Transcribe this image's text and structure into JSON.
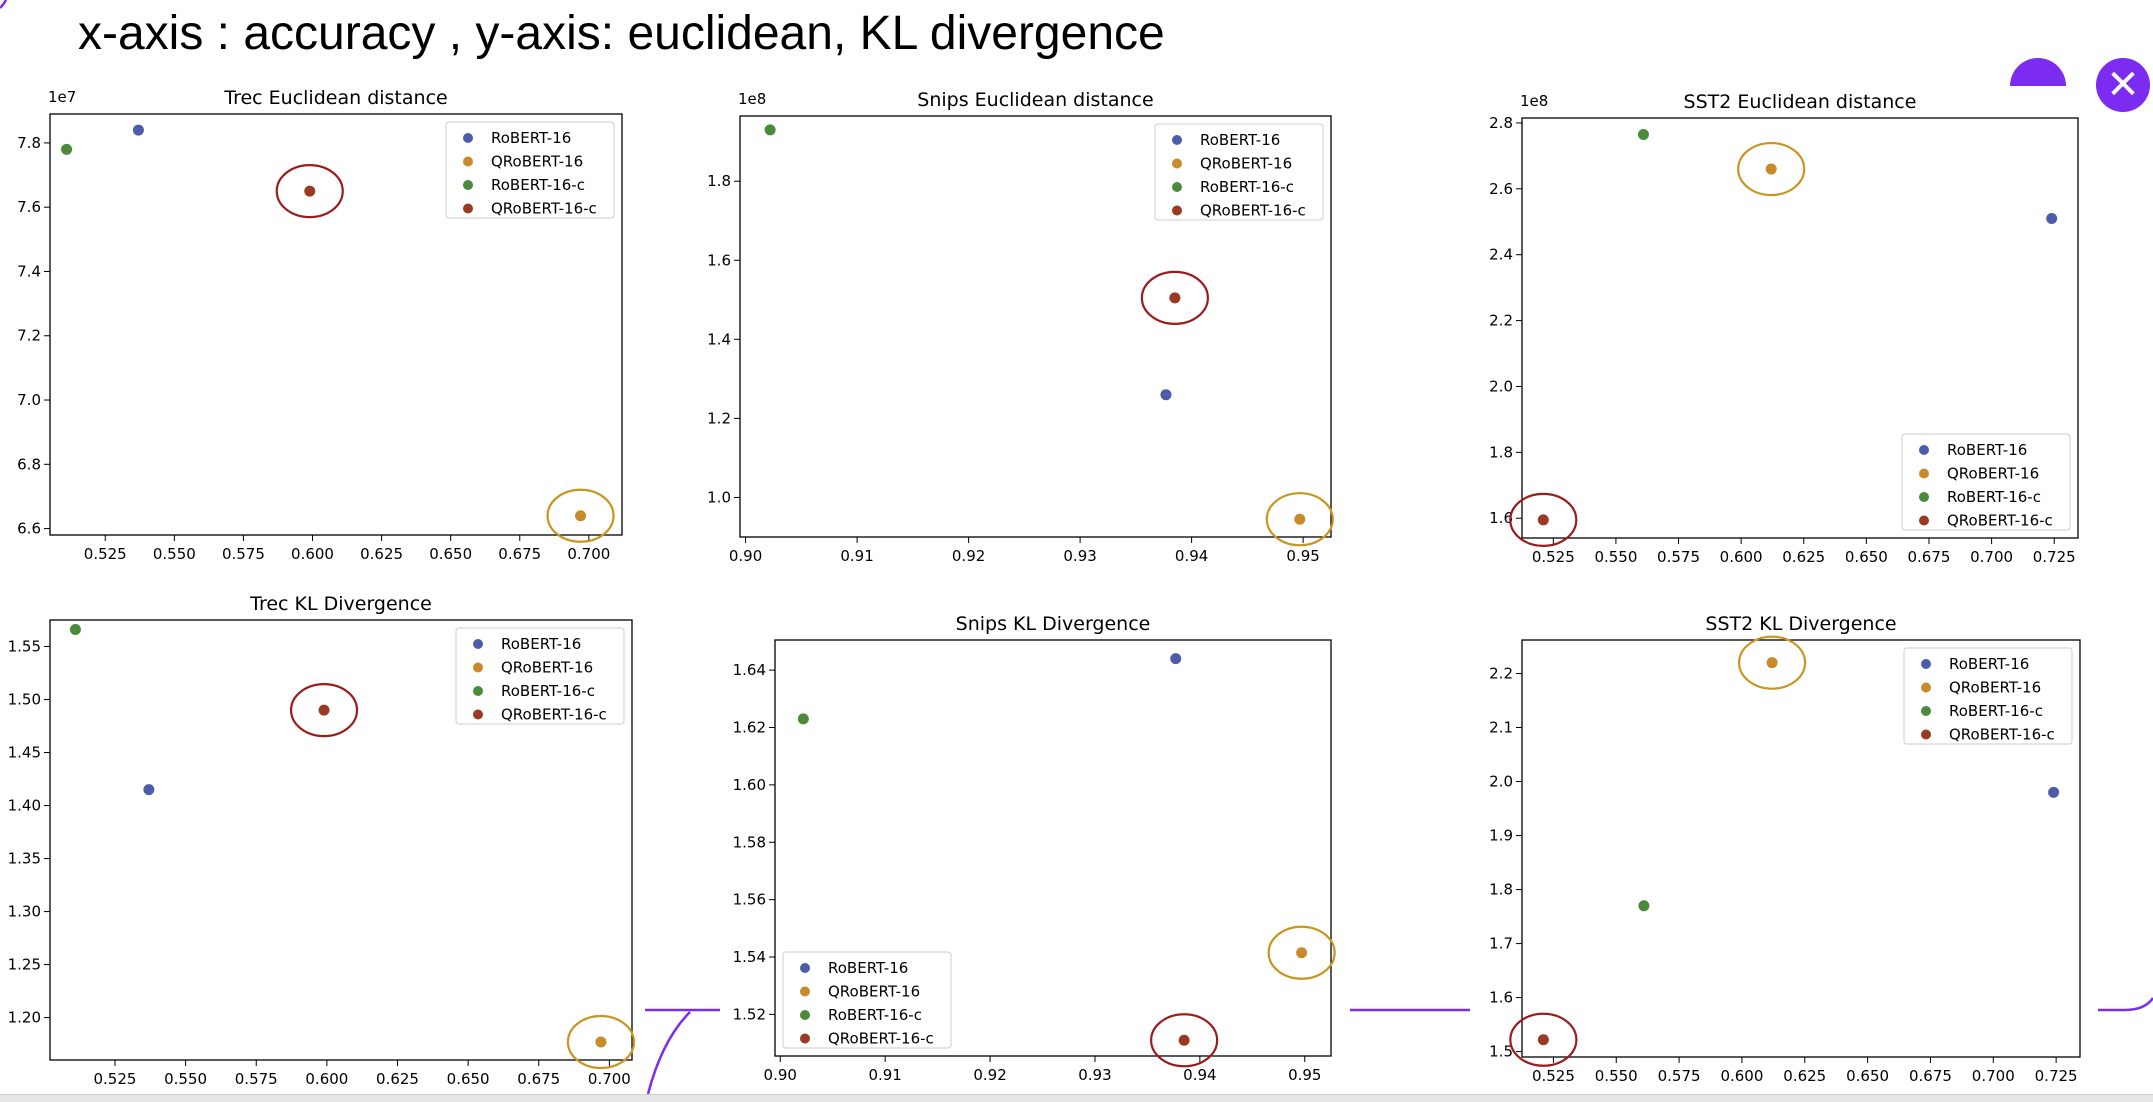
{
  "header": {
    "title": "x-axis : accuracy , y-axis: euclidean, KL divergence"
  },
  "controls": {
    "close_icon": "close-icon",
    "close_glyph": "✕",
    "accent": "#7b2cf0"
  },
  "colors": {
    "RoBERT-16": "#4c5ca8",
    "QRoBERT-16": "#c88a2a",
    "RoBERT-16-c": "#4a8a3a",
    "QRoBERT-16-c": "#9a3a22",
    "highlight_orange": "#c8951e",
    "highlight_red": "#9b1c1c"
  },
  "chart_data": [
    {
      "type": "scatter",
      "title": "Trec Euclidean distance",
      "offset_label": "1e7",
      "xlim": [
        0.505,
        0.712
      ],
      "ylim": [
        6.58,
        7.89
      ],
      "xticks": [
        0.525,
        0.55,
        0.575,
        0.6,
        0.625,
        0.65,
        0.675,
        0.7
      ],
      "xtick_labels": [
        "0.525",
        "0.550",
        "0.575",
        "0.600",
        "0.625",
        "0.650",
        "0.675",
        "0.700"
      ],
      "yticks": [
        6.6,
        6.8,
        7.0,
        7.2,
        7.4,
        7.6,
        7.8
      ],
      "ytick_labels": [
        "6.6",
        "6.8",
        "7.0",
        "7.2",
        "7.4",
        "7.6",
        "7.8"
      ],
      "legend_position": "top-right",
      "series": [
        {
          "name": "RoBERT-16",
          "x": 0.537,
          "y": 7.84
        },
        {
          "name": "QRoBERT-16",
          "x": 0.697,
          "y": 6.64
        },
        {
          "name": "RoBERT-16-c",
          "x": 0.511,
          "y": 7.78
        },
        {
          "name": "QRoBERT-16-c",
          "x": 0.599,
          "y": 7.65
        }
      ],
      "highlights": [
        {
          "series": "QRoBERT-16",
          "color": "highlight_orange"
        },
        {
          "series": "QRoBERT-16-c",
          "color": "highlight_red"
        }
      ]
    },
    {
      "type": "scatter",
      "title": "Snips Euclidean distance",
      "offset_label": "1e8",
      "xlim": [
        0.8995,
        0.9525
      ],
      "ylim": [
        0.9,
        1.965
      ],
      "xticks": [
        0.9,
        0.91,
        0.92,
        0.93,
        0.94,
        0.95
      ],
      "xtick_labels": [
        "0.90",
        "0.91",
        "0.92",
        "0.93",
        "0.94",
        "0.95"
      ],
      "yticks": [
        1.0,
        1.2,
        1.4,
        1.6,
        1.8
      ],
      "ytick_labels": [
        "1.0",
        "1.2",
        "1.4",
        "1.6",
        "1.8"
      ],
      "legend_position": "top-right",
      "series": [
        {
          "name": "RoBERT-16",
          "x": 0.9377,
          "y": 1.26
        },
        {
          "name": "QRoBERT-16",
          "x": 0.9497,
          "y": 0.945
        },
        {
          "name": "RoBERT-16-c",
          "x": 0.9022,
          "y": 1.93
        },
        {
          "name": "QRoBERT-16-c",
          "x": 0.9385,
          "y": 1.505
        }
      ],
      "highlights": [
        {
          "series": "QRoBERT-16",
          "color": "highlight_orange"
        },
        {
          "series": "QRoBERT-16-c",
          "color": "highlight_red"
        }
      ]
    },
    {
      "type": "scatter",
      "title": "SST2 Euclidean distance",
      "offset_label": "1e8",
      "xlim": [
        0.5125,
        0.7345
      ],
      "ylim": [
        1.54,
        2.815
      ],
      "xticks": [
        0.525,
        0.55,
        0.575,
        0.6,
        0.625,
        0.65,
        0.675,
        0.7,
        0.725
      ],
      "xtick_labels": [
        "0.525",
        "0.550",
        "0.575",
        "0.600",
        "0.625",
        "0.650",
        "0.675",
        "0.700",
        "0.725"
      ],
      "yticks": [
        1.6,
        1.8,
        2.0,
        2.2,
        2.4,
        2.6,
        2.8
      ],
      "ytick_labels": [
        "1.6",
        "1.8",
        "2.0",
        "2.2",
        "2.4",
        "2.6",
        "2.8"
      ],
      "legend_position": "bottom-right",
      "series": [
        {
          "name": "RoBERT-16",
          "x": 0.724,
          "y": 2.51
        },
        {
          "name": "QRoBERT-16",
          "x": 0.612,
          "y": 2.66
        },
        {
          "name": "RoBERT-16-c",
          "x": 0.561,
          "y": 2.765
        },
        {
          "name": "QRoBERT-16-c",
          "x": 0.521,
          "y": 1.595
        }
      ],
      "highlights": [
        {
          "series": "QRoBERT-16",
          "color": "highlight_orange"
        },
        {
          "series": "QRoBERT-16-c",
          "color": "highlight_red"
        }
      ]
    },
    {
      "type": "scatter",
      "title": "Trec KL Divergence",
      "offset_label": "",
      "xlim": [
        0.502,
        0.708
      ],
      "ylim": [
        1.16,
        1.575
      ],
      "xticks": [
        0.525,
        0.55,
        0.575,
        0.6,
        0.625,
        0.65,
        0.675,
        0.7
      ],
      "xtick_labels": [
        "0.525",
        "0.550",
        "0.575",
        "0.600",
        "0.625",
        "0.650",
        "0.675",
        "0.700"
      ],
      "yticks": [
        1.2,
        1.25,
        1.3,
        1.35,
        1.4,
        1.45,
        1.5,
        1.55
      ],
      "ytick_labels": [
        "1.20",
        "1.25",
        "1.30",
        "1.35",
        "1.40",
        "1.45",
        "1.50",
        "1.55"
      ],
      "legend_position": "top-right",
      "series": [
        {
          "name": "RoBERT-16",
          "x": 0.537,
          "y": 1.415
        },
        {
          "name": "QRoBERT-16",
          "x": 0.697,
          "y": 1.177
        },
        {
          "name": "RoBERT-16-c",
          "x": 0.511,
          "y": 1.566
        },
        {
          "name": "QRoBERT-16-c",
          "x": 0.599,
          "y": 1.49
        }
      ],
      "highlights": [
        {
          "series": "QRoBERT-16",
          "color": "highlight_orange"
        },
        {
          "series": "QRoBERT-16-c",
          "color": "highlight_red"
        }
      ]
    },
    {
      "type": "scatter",
      "title": "Snips KL Divergence",
      "offset_label": "",
      "xlim": [
        0.8995,
        0.9525
      ],
      "ylim": [
        1.5055,
        1.6505
      ],
      "xticks": [
        0.9,
        0.91,
        0.92,
        0.93,
        0.94,
        0.95
      ],
      "xtick_labels": [
        "0.90",
        "0.91",
        "0.92",
        "0.93",
        "0.94",
        "0.95"
      ],
      "yticks": [
        1.52,
        1.54,
        1.56,
        1.58,
        1.6,
        1.62,
        1.64
      ],
      "ytick_labels": [
        "1.52",
        "1.54",
        "1.56",
        "1.58",
        "1.60",
        "1.62",
        "1.64"
      ],
      "legend_position": "bottom-left",
      "series": [
        {
          "name": "RoBERT-16",
          "x": 0.9377,
          "y": 1.644
        },
        {
          "name": "QRoBERT-16",
          "x": 0.9497,
          "y": 1.5415
        },
        {
          "name": "RoBERT-16-c",
          "x": 0.9022,
          "y": 1.623
        },
        {
          "name": "QRoBERT-16-c",
          "x": 0.9385,
          "y": 1.511
        }
      ],
      "highlights": [
        {
          "series": "QRoBERT-16",
          "color": "highlight_orange"
        },
        {
          "series": "QRoBERT-16-c",
          "color": "highlight_red"
        }
      ]
    },
    {
      "type": "scatter",
      "title": "SST2 KL Divergence",
      "offset_label": "",
      "xlim": [
        0.5125,
        0.7345
      ],
      "ylim": [
        1.49,
        2.262
      ],
      "xticks": [
        0.525,
        0.55,
        0.575,
        0.6,
        0.625,
        0.65,
        0.675,
        0.7,
        0.725
      ],
      "xtick_labels": [
        "0.525",
        "0.550",
        "0.575",
        "0.600",
        "0.625",
        "0.650",
        "0.675",
        "0.700",
        "0.725"
      ],
      "yticks": [
        1.5,
        1.6,
        1.7,
        1.8,
        1.9,
        2.0,
        2.1,
        2.2
      ],
      "ytick_labels": [
        "1.5",
        "1.6",
        "1.7",
        "1.8",
        "1.9",
        "2.0",
        "2.1",
        "2.2"
      ],
      "legend_position": "top-right",
      "series": [
        {
          "name": "RoBERT-16",
          "x": 0.724,
          "y": 1.98
        },
        {
          "name": "QRoBERT-16",
          "x": 0.612,
          "y": 2.22
        },
        {
          "name": "RoBERT-16-c",
          "x": 0.561,
          "y": 1.77
        },
        {
          "name": "QRoBERT-16-c",
          "x": 0.521,
          "y": 1.522
        }
      ],
      "highlights": [
        {
          "series": "QRoBERT-16",
          "color": "highlight_orange"
        },
        {
          "series": "QRoBERT-16-c",
          "color": "highlight_red"
        }
      ]
    }
  ]
}
